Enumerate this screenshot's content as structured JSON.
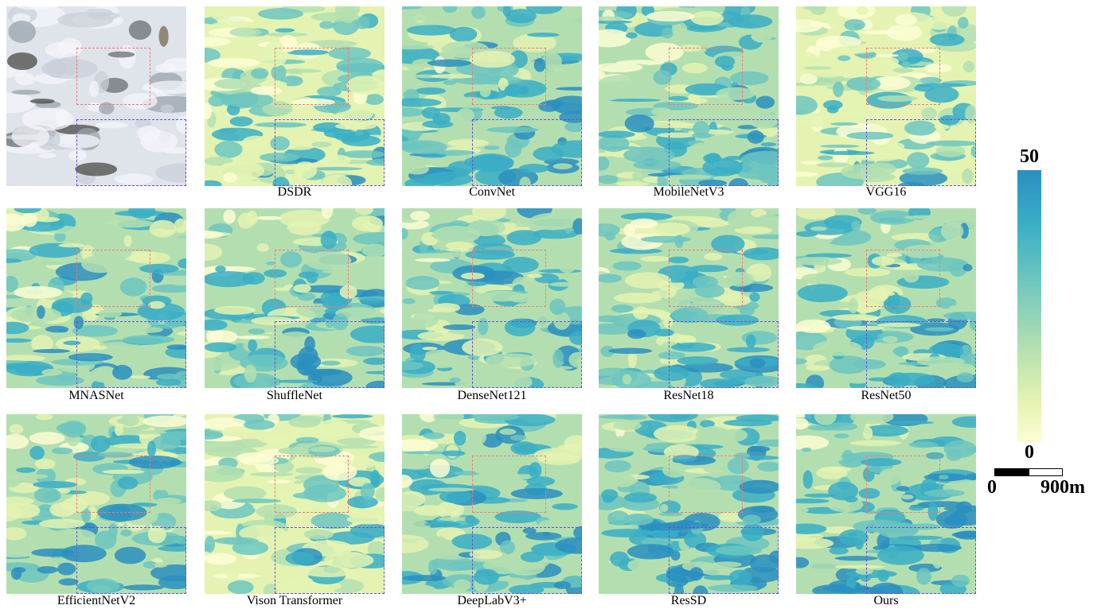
{
  "figure": {
    "panels": [
      {
        "name": "rgb-input",
        "caption": "",
        "kind": "rgb"
      },
      {
        "name": "dsdr",
        "caption": "DSDR",
        "kind": "map",
        "level": 0.35
      },
      {
        "name": "convnet",
        "caption": "ConvNet",
        "kind": "map",
        "level": 0.55
      },
      {
        "name": "mobilenetv3",
        "caption": "MobileNetV3",
        "kind": "map",
        "level": 0.5
      },
      {
        "name": "vgg16",
        "caption": "VGG16",
        "kind": "map",
        "level": 0.3
      },
      {
        "name": "mnasnet",
        "caption": "MNASNet",
        "kind": "map",
        "level": 0.5
      },
      {
        "name": "shufflenet",
        "caption": "ShuffleNet",
        "kind": "map",
        "level": 0.48
      },
      {
        "name": "densenet121",
        "caption": "DenseNet121",
        "kind": "map",
        "level": 0.5
      },
      {
        "name": "resnet18",
        "caption": "ResNet18",
        "kind": "map",
        "level": 0.48
      },
      {
        "name": "resnet50",
        "caption": "ResNet50",
        "kind": "map",
        "level": 0.5
      },
      {
        "name": "efficientnetv2",
        "caption": "EfficientNetV2",
        "kind": "map",
        "level": 0.48
      },
      {
        "name": "vision-transformer",
        "caption": "Vison Transformer",
        "kind": "map",
        "level": 0.35
      },
      {
        "name": "deeplabv3plus",
        "caption": "DeepLabV3+",
        "kind": "map",
        "level": 0.55
      },
      {
        "name": "ressd",
        "caption": "ResSD",
        "kind": "map",
        "level": 0.58
      },
      {
        "name": "ours",
        "caption": "Ours",
        "kind": "map",
        "level": 0.6
      }
    ],
    "colorbar": {
      "max_label": "50",
      "min_label": "0",
      "colors": [
        "#2a8fc0",
        "#3aaec6",
        "#6cc6bf",
        "#b3dfb0",
        "#e4f3b2",
        "#fdfdd2"
      ]
    },
    "scalebar": {
      "start_label": "0",
      "end_label": "900m"
    },
    "roi_colors": {
      "upper": "#f07a7a",
      "lower": "#6a4fd0"
    }
  }
}
